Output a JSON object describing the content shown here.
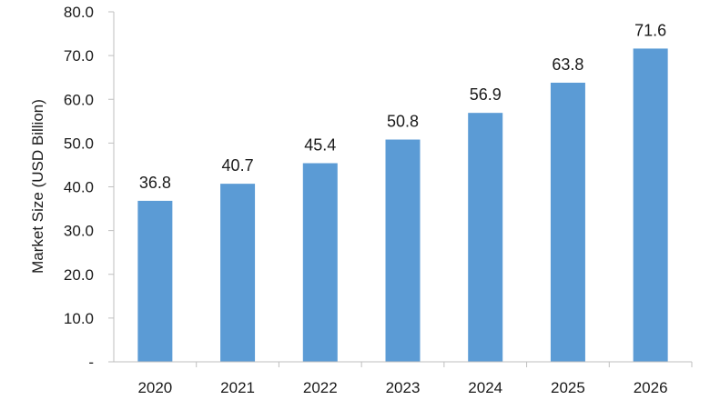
{
  "chart_data": {
    "type": "bar",
    "categories": [
      "2020",
      "2021",
      "2022",
      "2023",
      "2024",
      "2025",
      "2026"
    ],
    "values": [
      36.8,
      40.7,
      45.4,
      50.8,
      56.9,
      63.8,
      71.6
    ],
    "value_labels": [
      "36.8",
      "40.7",
      "45.4",
      "50.8",
      "56.9",
      "63.8",
      "71.6"
    ],
    "title": "",
    "xlabel": "",
    "ylabel": "Market Size (USD Billion)",
    "ylim": [
      0,
      80
    ],
    "yticks": [
      0,
      10,
      20,
      30,
      40,
      50,
      60,
      70,
      80
    ],
    "ytick_labels": [
      "-",
      "10.0",
      "20.0",
      "30.0",
      "40.0",
      "50.0",
      "60.0",
      "70.0",
      "80.0"
    ],
    "grid": false,
    "legend": "none",
    "bar_color": "#5b9bd5",
    "axis_color": "#bfbfbf"
  }
}
